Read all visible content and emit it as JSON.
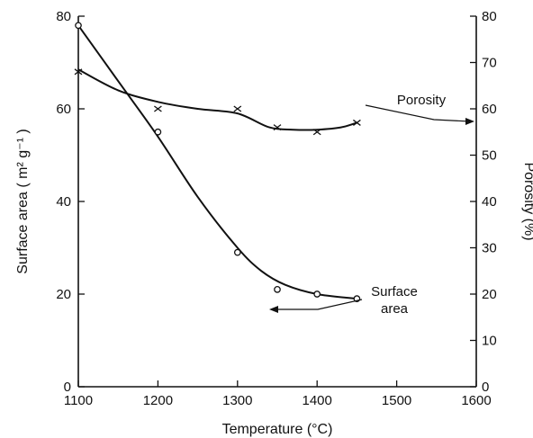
{
  "chart_data": {
    "type": "line",
    "xlabel": "Temperature (°C)",
    "ylabel_left": "Surface area ( m² g⁻¹ )",
    "ylabel_right": "Porosity (%)",
    "xlim": [
      1100,
      1600
    ],
    "ylim_left": [
      0,
      80
    ],
    "ylim_right": [
      0,
      80
    ],
    "x_ticks": [
      1100,
      1200,
      1300,
      1400,
      1500,
      1600
    ],
    "y_ticks_left": [
      0,
      20,
      40,
      60,
      80
    ],
    "y_ticks_right": [
      0,
      10,
      20,
      30,
      40,
      50,
      60,
      70,
      80
    ],
    "grid": false,
    "series": [
      {
        "name": "Porosity",
        "axis": "right",
        "marker": "x",
        "x": [
          1100,
          1200,
          1300,
          1350,
          1400,
          1450
        ],
        "y": [
          68,
          60,
          60,
          56,
          55,
          57
        ],
        "curve": [
          [
            1100,
            68.5
          ],
          [
            1150,
            64
          ],
          [
            1200,
            61.5
          ],
          [
            1250,
            60
          ],
          [
            1300,
            59
          ],
          [
            1340,
            56
          ],
          [
            1370,
            55.5
          ],
          [
            1400,
            55.5
          ],
          [
            1430,
            56
          ],
          [
            1450,
            57
          ]
        ]
      },
      {
        "name": "Surface area",
        "axis": "left",
        "marker": "o",
        "x": [
          1100,
          1200,
          1300,
          1350,
          1400,
          1450
        ],
        "y": [
          78,
          55,
          29,
          21,
          20,
          19
        ],
        "curve": [
          [
            1100,
            78
          ],
          [
            1150,
            66
          ],
          [
            1200,
            54
          ],
          [
            1250,
            41
          ],
          [
            1300,
            30
          ],
          [
            1330,
            25
          ],
          [
            1360,
            22
          ],
          [
            1400,
            20
          ],
          [
            1450,
            19
          ]
        ]
      }
    ],
    "annotations": [
      {
        "text": "Porosity",
        "series": "Porosity",
        "arrow": "right"
      },
      {
        "text": "Surface area",
        "lines": [
          "Surface",
          "area"
        ],
        "series": "Surface area",
        "arrow": "left"
      }
    ]
  }
}
